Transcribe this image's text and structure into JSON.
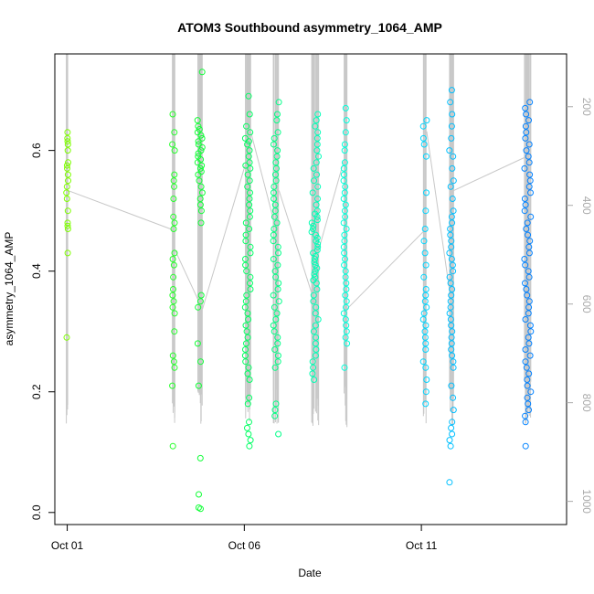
{
  "chart_data": {
    "type": "scatter",
    "title": "ATOM3 Southbound asymmetry_1064_AMP",
    "xlabel": "Date",
    "ylabel": "asymmetry_1064_AMP",
    "x_ticks": [
      "Oct 01",
      "Oct 06",
      "Oct 11"
    ],
    "x_tick_days": [
      1,
      6,
      11
    ],
    "xlim": [
      0.65,
      15.1
    ],
    "ylim": [
      -0.02,
      0.76
    ],
    "y_ticks": [
      0.0,
      0.2,
      0.4,
      0.6
    ],
    "y_tick_labels": [
      "0.0",
      "0.2",
      "0.4",
      "0.6"
    ],
    "y2_ticks": [
      200,
      400,
      600,
      800,
      1000
    ],
    "y2_tick_labels": [
      "200",
      "400",
      "600",
      "800",
      "1000"
    ],
    "y2lim": [
      1047,
      93
    ],
    "color_gradient": [
      "#7fff00",
      "#00ff40",
      "#00ffff",
      "#0080ff"
    ],
    "secondary_line_color": "#c8c8c8",
    "clusters": [
      {
        "day": 1.0,
        "spread": 0.05,
        "values": [
          0.63,
          0.62,
          0.615,
          0.61,
          0.6,
          0.58,
          0.575,
          0.57,
          0.56,
          0.55,
          0.54,
          0.53,
          0.52,
          0.5,
          0.48,
          0.475,
          0.47,
          0.43,
          0.29
        ]
      },
      {
        "day": 4.0,
        "spread": 0.08,
        "values": [
          0.66,
          0.63,
          0.61,
          0.6,
          0.56,
          0.55,
          0.54,
          0.52,
          0.49,
          0.48,
          0.47,
          0.43,
          0.42,
          0.41,
          0.39,
          0.37,
          0.36,
          0.35,
          0.34,
          0.33,
          0.3,
          0.26,
          0.25,
          0.24,
          0.21,
          0.11
        ]
      },
      {
        "day": 4.75,
        "spread": 0.14,
        "values": [
          0.73,
          0.65,
          0.64,
          0.635,
          0.63,
          0.625,
          0.62,
          0.615,
          0.61,
          0.605,
          0.6,
          0.595,
          0.59,
          0.585,
          0.58,
          0.575,
          0.57,
          0.565,
          0.56,
          0.55,
          0.54,
          0.53,
          0.52,
          0.51,
          0.5,
          0.48,
          0.36,
          0.35,
          0.34,
          0.28,
          0.25,
          0.21,
          0.09,
          0.03,
          0.008,
          0.006
        ]
      },
      {
        "day": 6.1,
        "spread": 0.16,
        "values": [
          0.69,
          0.66,
          0.64,
          0.63,
          0.62,
          0.615,
          0.61,
          0.6,
          0.59,
          0.58,
          0.575,
          0.57,
          0.56,
          0.55,
          0.54,
          0.53,
          0.52,
          0.51,
          0.5,
          0.49,
          0.48,
          0.47,
          0.46,
          0.45,
          0.44,
          0.43,
          0.42,
          0.41,
          0.4,
          0.39,
          0.38,
          0.37,
          0.36,
          0.35,
          0.34,
          0.33,
          0.32,
          0.31,
          0.3,
          0.29,
          0.28,
          0.27,
          0.26,
          0.25,
          0.24,
          0.23,
          0.22,
          0.19,
          0.18,
          0.15,
          0.14,
          0.13,
          0.12,
          0.11
        ]
      },
      {
        "day": 6.9,
        "spread": 0.16,
        "values": [
          0.68,
          0.66,
          0.65,
          0.63,
          0.62,
          0.61,
          0.6,
          0.59,
          0.58,
          0.57,
          0.56,
          0.55,
          0.54,
          0.53,
          0.52,
          0.51,
          0.5,
          0.49,
          0.48,
          0.47,
          0.46,
          0.45,
          0.44,
          0.43,
          0.42,
          0.41,
          0.4,
          0.39,
          0.38,
          0.37,
          0.36,
          0.35,
          0.34,
          0.33,
          0.32,
          0.31,
          0.3,
          0.29,
          0.28,
          0.27,
          0.26,
          0.25,
          0.24,
          0.18,
          0.17,
          0.16,
          0.13
        ]
      },
      {
        "day": 8.0,
        "spread": 0.2,
        "values": [
          0.66,
          0.65,
          0.64,
          0.63,
          0.62,
          0.61,
          0.6,
          0.59,
          0.58,
          0.57,
          0.56,
          0.55,
          0.54,
          0.53,
          0.52,
          0.51,
          0.5,
          0.495,
          0.49,
          0.485,
          0.48,
          0.475,
          0.47,
          0.465,
          0.46,
          0.455,
          0.45,
          0.445,
          0.44,
          0.435,
          0.43,
          0.425,
          0.42,
          0.415,
          0.41,
          0.405,
          0.4,
          0.395,
          0.39,
          0.385,
          0.38,
          0.37,
          0.36,
          0.35,
          0.34,
          0.33,
          0.32,
          0.31,
          0.3,
          0.29,
          0.28,
          0.27,
          0.26,
          0.25,
          0.24,
          0.23,
          0.22
        ]
      },
      {
        "day": 8.85,
        "spread": 0.1,
        "values": [
          0.67,
          0.65,
          0.63,
          0.61,
          0.6,
          0.58,
          0.57,
          0.56,
          0.55,
          0.54,
          0.53,
          0.52,
          0.51,
          0.5,
          0.49,
          0.48,
          0.47,
          0.46,
          0.45,
          0.44,
          0.43,
          0.42,
          0.41,
          0.4,
          0.39,
          0.38,
          0.37,
          0.36,
          0.35,
          0.34,
          0.33,
          0.32,
          0.31,
          0.3,
          0.29,
          0.28,
          0.24
        ]
      },
      {
        "day": 11.1,
        "spread": 0.1,
        "values": [
          0.65,
          0.64,
          0.62,
          0.61,
          0.59,
          0.53,
          0.5,
          0.47,
          0.45,
          0.43,
          0.41,
          0.39,
          0.37,
          0.36,
          0.35,
          0.34,
          0.33,
          0.32,
          0.31,
          0.3,
          0.29,
          0.28,
          0.27,
          0.25,
          0.24,
          0.22,
          0.2,
          0.18
        ]
      },
      {
        "day": 11.85,
        "spread": 0.12,
        "values": [
          0.7,
          0.68,
          0.66,
          0.64,
          0.62,
          0.6,
          0.59,
          0.57,
          0.55,
          0.54,
          0.52,
          0.5,
          0.49,
          0.48,
          0.47,
          0.46,
          0.45,
          0.44,
          0.43,
          0.42,
          0.41,
          0.4,
          0.39,
          0.38,
          0.37,
          0.36,
          0.35,
          0.34,
          0.33,
          0.32,
          0.31,
          0.3,
          0.29,
          0.28,
          0.27,
          0.26,
          0.25,
          0.24,
          0.21,
          0.19,
          0.17,
          0.15,
          0.14,
          0.13,
          0.12,
          0.11,
          0.05
        ]
      },
      {
        "day": 14.0,
        "spread": 0.18,
        "values": [
          0.68,
          0.67,
          0.66,
          0.65,
          0.64,
          0.63,
          0.62,
          0.61,
          0.6,
          0.59,
          0.58,
          0.57,
          0.56,
          0.55,
          0.54,
          0.53,
          0.52,
          0.51,
          0.5,
          0.49,
          0.48,
          0.47,
          0.46,
          0.45,
          0.44,
          0.43,
          0.42,
          0.41,
          0.4,
          0.39,
          0.38,
          0.37,
          0.36,
          0.35,
          0.34,
          0.33,
          0.32,
          0.31,
          0.3,
          0.29,
          0.28,
          0.27,
          0.26,
          0.25,
          0.24,
          0.23,
          0.22,
          0.21,
          0.2,
          0.19,
          0.18,
          0.17,
          0.16,
          0.15,
          0.11
        ]
      }
    ]
  }
}
